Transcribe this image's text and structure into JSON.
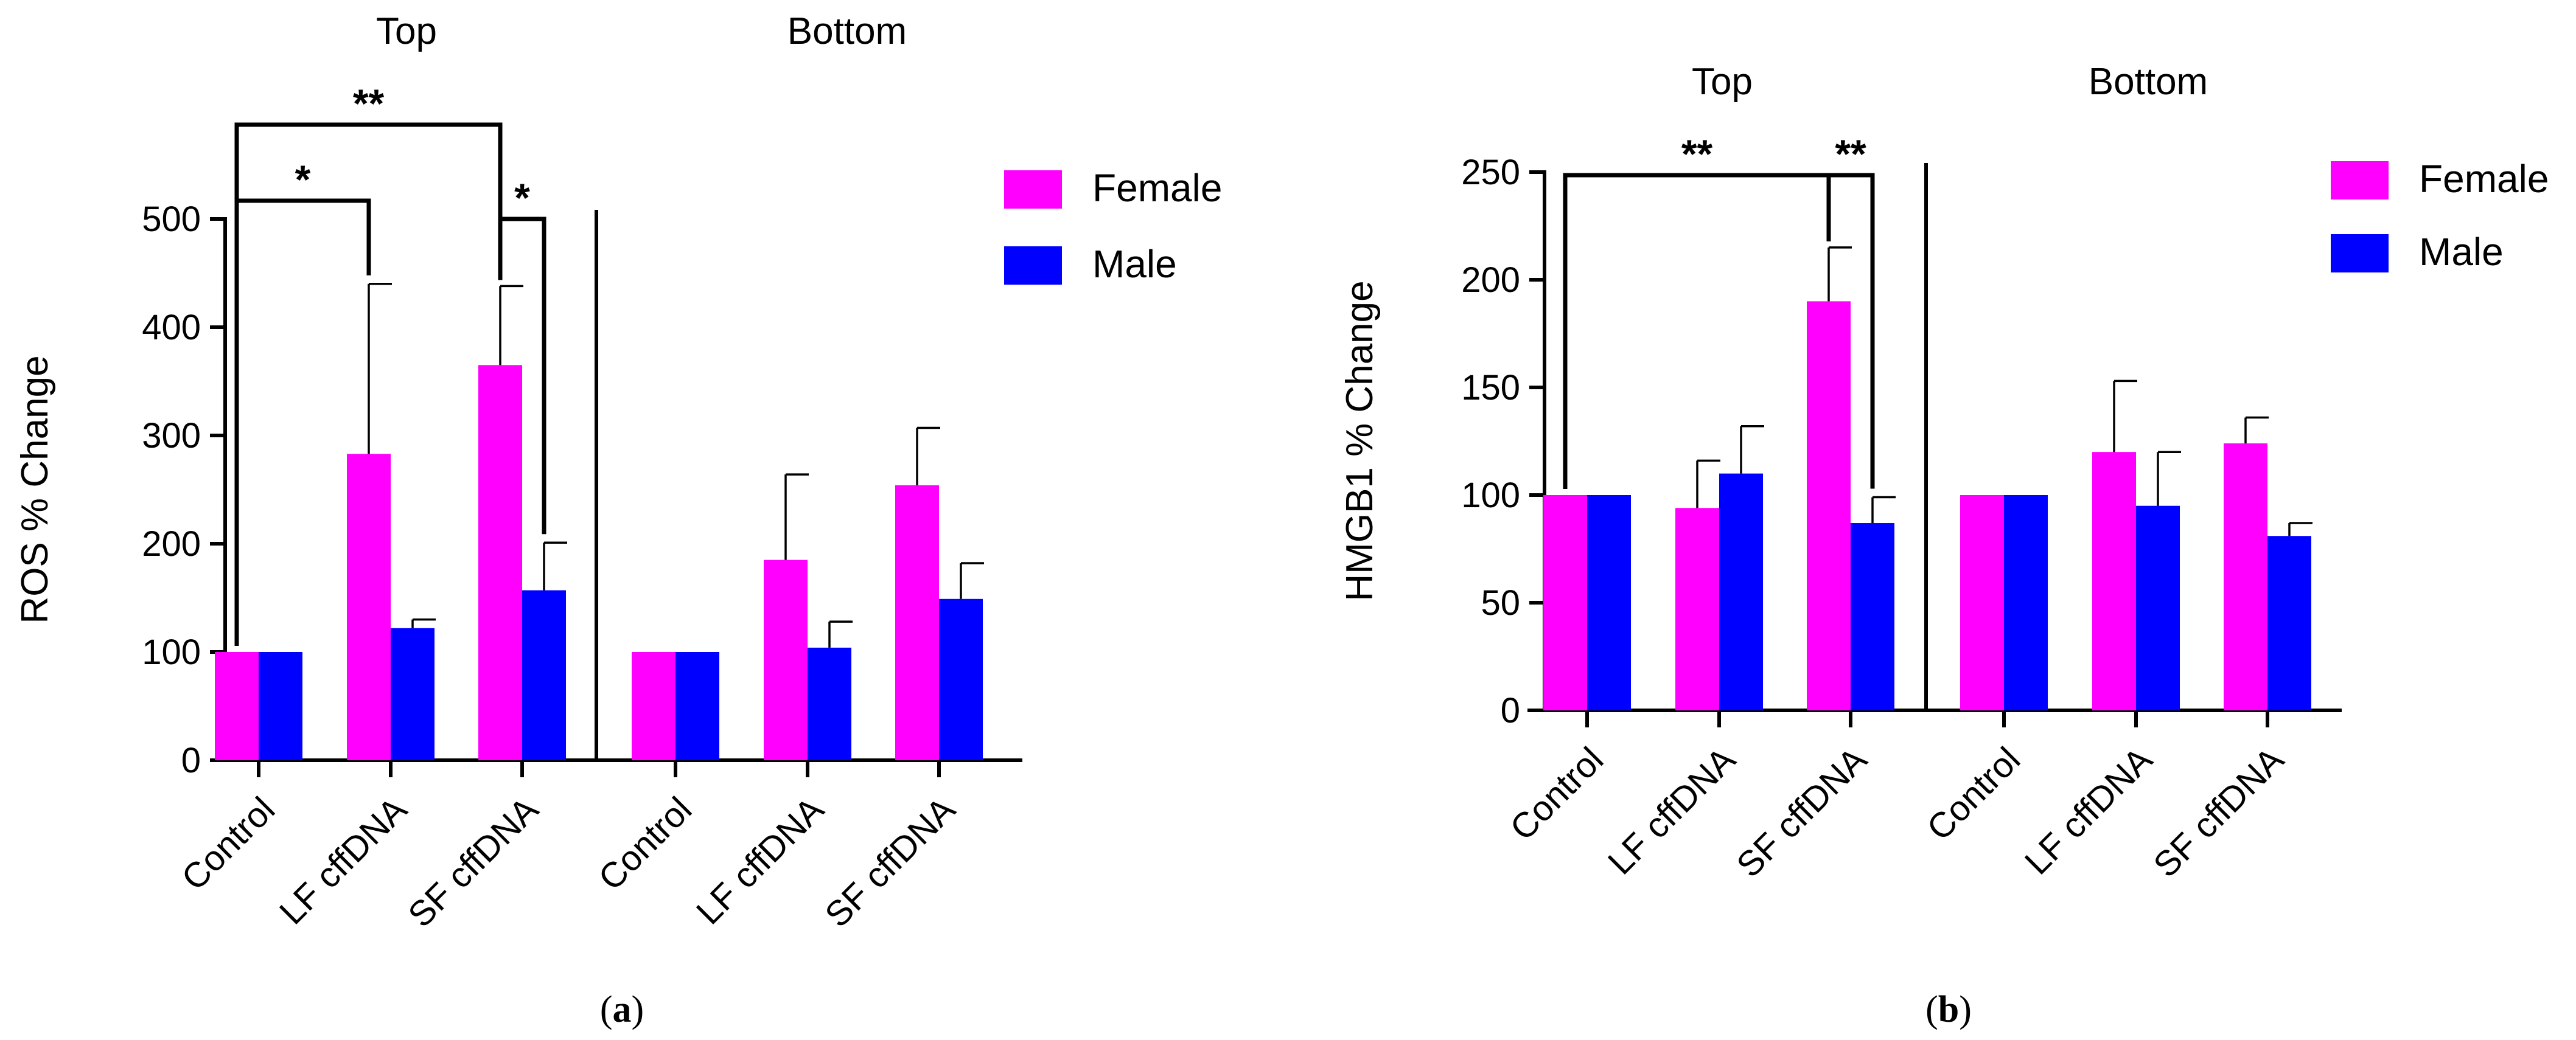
{
  "figure": {
    "panels": [
      {
        "label": "a",
        "left_paren": "(",
        "right_paren": ")"
      },
      {
        "label": "b",
        "left_paren": "(",
        "right_paren": ")"
      }
    ]
  },
  "colors": {
    "female": "#FF00FF",
    "male": "#0000FF",
    "axis": "#000000"
  },
  "chart_data": [
    {
      "id": "a",
      "type": "bar",
      "ylabel": "ROS % Change",
      "ylim": [
        0,
        500
      ],
      "yticks": [
        0,
        100,
        200,
        300,
        400,
        500
      ],
      "groups": [
        "Top",
        "Bottom"
      ],
      "categories": [
        "Control",
        "LF cffDNA",
        "SF cffDNA",
        "Control",
        "LF cffDNA",
        "SF cffDNA"
      ],
      "legend": [
        "Female",
        "Male"
      ],
      "legend_position": "top-right",
      "series": [
        {
          "name": "Female",
          "values": [
            100,
            283,
            365,
            100,
            185,
            254
          ],
          "errors": [
            0,
            157,
            73,
            0,
            79,
            53
          ]
        },
        {
          "name": "Male",
          "values": [
            100,
            122,
            157,
            100,
            104,
            149
          ],
          "errors": [
            0,
            8,
            44,
            0,
            24,
            33
          ]
        }
      ],
      "significance": [
        {
          "label": "*",
          "from": {
            "cat": 0,
            "series": 0
          },
          "to": {
            "cat": 1,
            "series": 0
          }
        },
        {
          "label": "**",
          "from": {
            "cat": 0,
            "series": 0
          },
          "to": {
            "cat": 2,
            "series": 0
          }
        },
        {
          "label": "*",
          "from": {
            "cat": 2,
            "series": 0
          },
          "to": {
            "cat": 2,
            "series": 1
          }
        }
      ]
    },
    {
      "id": "b",
      "type": "bar",
      "ylabel": "HMGB1 % Change",
      "ylim": [
        0,
        250
      ],
      "yticks": [
        0,
        50,
        100,
        150,
        200,
        250
      ],
      "groups": [
        "Top",
        "Bottom"
      ],
      "categories": [
        "Control",
        "LF cffDNA",
        "SF cffDNA",
        "Control",
        "LF cffDNA",
        "SF cffDNA"
      ],
      "legend": [
        "Female",
        "Male"
      ],
      "legend_position": "top-right",
      "series": [
        {
          "name": "Female",
          "values": [
            100,
            94,
            190,
            100,
            120,
            124
          ],
          "errors": [
            0,
            22,
            25,
            0,
            33,
            12
          ]
        },
        {
          "name": "Male",
          "values": [
            100,
            110,
            87,
            100,
            95,
            81
          ],
          "errors": [
            0,
            22,
            12,
            0,
            25,
            6
          ]
        }
      ],
      "significance": [
        {
          "label": "**",
          "from": {
            "cat": 0,
            "series": 0
          },
          "to": {
            "cat": 2,
            "series": 0
          }
        },
        {
          "label": "**",
          "from": {
            "cat": 2,
            "series": 0
          },
          "to": {
            "cat": 2,
            "series": 1
          }
        }
      ]
    }
  ]
}
